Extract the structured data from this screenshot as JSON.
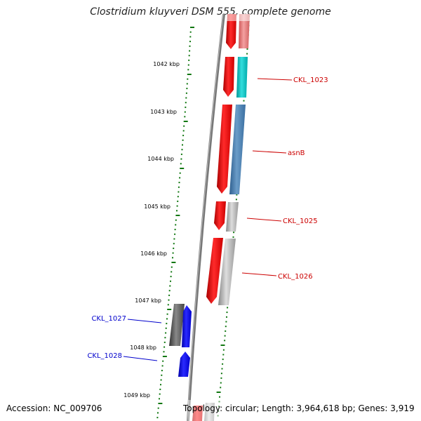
{
  "title": "Clostridium kluyveri DSM 555, complete genome",
  "footer": {
    "accession": "Accession: NC_009706",
    "stats": "Topology: circular; Length: 3,964,618 bp; Genes: 3,919"
  },
  "ruler": {
    "labels": [
      "1042 kbp",
      "1043 kbp",
      "1044 kbp",
      "1045 kbp",
      "1046 kbp",
      "1047 kbp",
      "1048 kbp",
      "1049 kbp"
    ]
  },
  "genes": {
    "forward_strand_labels": [
      "CKL_1023",
      "asnB",
      "CKL_1025",
      "CKL_1026"
    ],
    "reverse_strand_labels": [
      "CKL_1027",
      "CKL_1028"
    ]
  },
  "colors": {
    "cds": "#ff0000",
    "reverse_gene": "#0000ff",
    "label_forward": "#cc0000",
    "label_reverse": "#0000cc",
    "ticks": "#117711",
    "backbone": "#888888",
    "gene_CKL_1023": "#00cccc",
    "gene_asnB": "#4682b4",
    "gene_gray": "#bbbbbb",
    "gene_dark": "#555555",
    "gene_top_pink": "#ee8080"
  }
}
